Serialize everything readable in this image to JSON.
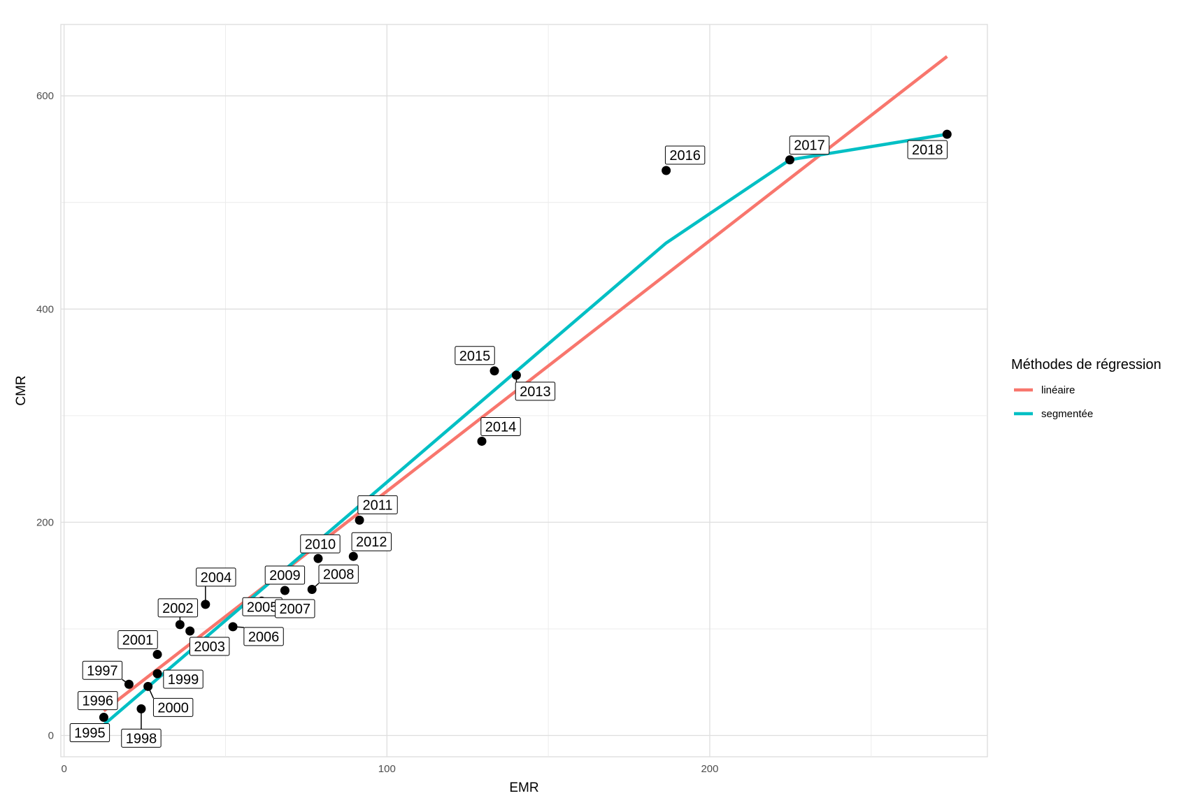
{
  "chart_data": {
    "type": "scatter",
    "xlabel": "EMR",
    "ylabel": "CMR",
    "xlim": [
      -1,
      286
    ],
    "ylim": [
      -20,
      667
    ],
    "grid": true,
    "x_ticks": [
      {
        "value": 0,
        "label": "0"
      },
      {
        "value": 100,
        "label": "100"
      },
      {
        "value": 200,
        "label": "200"
      }
    ],
    "y_ticks": [
      {
        "value": 0,
        "label": "0"
      },
      {
        "value": 200,
        "label": "200"
      },
      {
        "value": 400,
        "label": "400"
      },
      {
        "value": 600,
        "label": "600"
      }
    ],
    "points": [
      {
        "year": "1995",
        "x": 12.3,
        "y": 17
      },
      {
        "year": "1996",
        "x": 15.2,
        "y": 36
      },
      {
        "year": "1997",
        "x": 20.1,
        "y": 48
      },
      {
        "year": "1998",
        "x": 23.9,
        "y": 25
      },
      {
        "year": "1999",
        "x": 28.9,
        "y": 58
      },
      {
        "year": "2000",
        "x": 26.0,
        "y": 46
      },
      {
        "year": "2001",
        "x": 28.9,
        "y": 76
      },
      {
        "year": "2002",
        "x": 35.9,
        "y": 104
      },
      {
        "year": "2003",
        "x": 39.0,
        "y": 98
      },
      {
        "year": "2004",
        "x": 43.8,
        "y": 123
      },
      {
        "year": "2005",
        "x": 61.2,
        "y": 126
      },
      {
        "year": "2006",
        "x": 52.3,
        "y": 102
      },
      {
        "year": "2007",
        "x": 62.2,
        "y": 119
      },
      {
        "year": "2008",
        "x": 76.8,
        "y": 137
      },
      {
        "year": "2009",
        "x": 68.4,
        "y": 136
      },
      {
        "year": "2010",
        "x": 78.7,
        "y": 166
      },
      {
        "year": "2011",
        "x": 91.5,
        "y": 202
      },
      {
        "year": "2012",
        "x": 89.6,
        "y": 168
      },
      {
        "year": "2013",
        "x": 140.1,
        "y": 338
      },
      {
        "year": "2014",
        "x": 129.4,
        "y": 276
      },
      {
        "year": "2015",
        "x": 133.3,
        "y": 342
      },
      {
        "year": "2016",
        "x": 186.5,
        "y": 530
      },
      {
        "year": "2017",
        "x": 224.8,
        "y": 540
      },
      {
        "year": "2018",
        "x": 273.5,
        "y": 564
      }
    ],
    "series": [
      {
        "name": "linéaire",
        "color": "#F8766D",
        "x": [
          12.3,
          273.5
        ],
        "y": [
          23,
          637
        ]
      },
      {
        "name": "segmentée",
        "color": "#00BFC4",
        "x": [
          12.3,
          186.5,
          224.8,
          273.5
        ],
        "y": [
          10,
          462,
          540,
          564
        ]
      }
    ],
    "legend": {
      "title": "Méthodes de régression",
      "position": "right",
      "items": [
        "linéaire",
        "segmentée"
      ]
    }
  }
}
